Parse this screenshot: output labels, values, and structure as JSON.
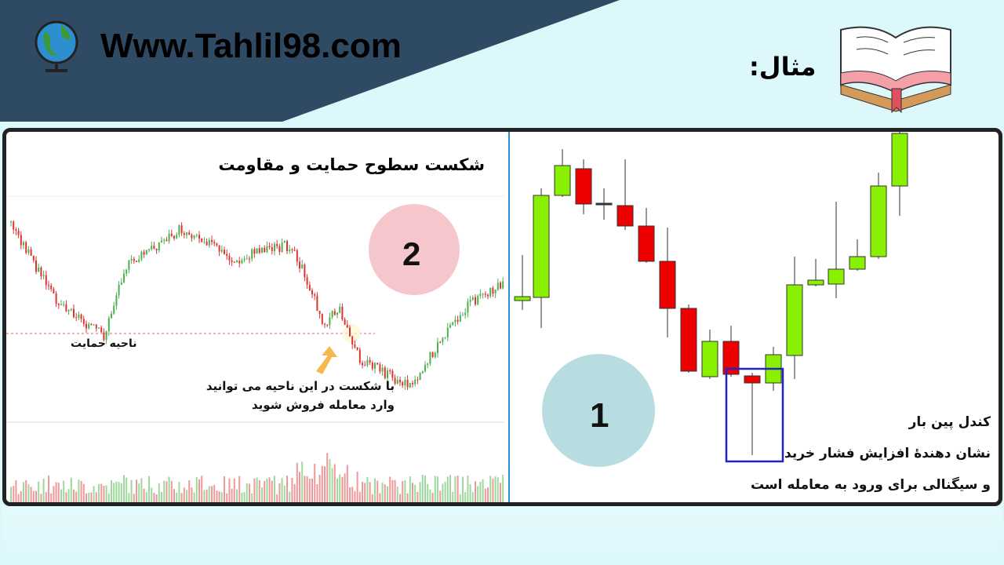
{
  "header": {
    "site": "Www.Tahlil98.com",
    "example_label": "مثال:"
  },
  "left_panel": {
    "title": "شکست سطوح حمایت و مقاومت",
    "badge": "2",
    "support_label": "ناحیه حمایت",
    "note_line1": "با شکست در این ناحیه می توانید",
    "note_line2": "وارد معامله فروش شوید"
  },
  "right_panel": {
    "badge": "1",
    "line1": "کندل پین بار",
    "line2": "نشان دهندهٔ افزایش فشار خرید",
    "line3": "و سیگنالی برای ورود به معامله است"
  },
  "colors": {
    "banner": "#2f4a63",
    "bull": "#88f000",
    "bear": "#ee0000",
    "highlight_box": "#2222cc",
    "badge1": "#b8dde0",
    "badge2": "#f5c6cc"
  }
}
